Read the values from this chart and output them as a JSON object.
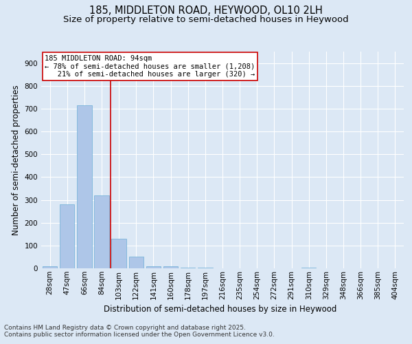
{
  "title_line1": "185, MIDDLETON ROAD, HEYWOOD, OL10 2LH",
  "title_line2": "Size of property relative to semi-detached houses in Heywood",
  "xlabel": "Distribution of semi-detached houses by size in Heywood",
  "ylabel": "Number of semi-detached properties",
  "categories": [
    "28sqm",
    "47sqm",
    "66sqm",
    "84sqm",
    "103sqm",
    "122sqm",
    "141sqm",
    "160sqm",
    "178sqm",
    "197sqm",
    "216sqm",
    "235sqm",
    "254sqm",
    "272sqm",
    "291sqm",
    "310sqm",
    "329sqm",
    "348sqm",
    "366sqm",
    "385sqm",
    "404sqm"
  ],
  "values": [
    10,
    280,
    715,
    320,
    130,
    50,
    10,
    10,
    2,
    2,
    0,
    0,
    0,
    0,
    0,
    2,
    0,
    0,
    0,
    0,
    0
  ],
  "bar_color": "#aec6e8",
  "bar_edge_color": "#6baed6",
  "vline_color": "#cc0000",
  "annotation_text": "185 MIDDLETON ROAD: 94sqm\n← 78% of semi-detached houses are smaller (1,208)\n   21% of semi-detached houses are larger (320) →",
  "annotation_box_color": "#ffffff",
  "annotation_border_color": "#cc0000",
  "ylim": [
    0,
    950
  ],
  "yticks": [
    0,
    100,
    200,
    300,
    400,
    500,
    600,
    700,
    800,
    900
  ],
  "footer_line1": "Contains HM Land Registry data © Crown copyright and database right 2025.",
  "footer_line2": "Contains public sector information licensed under the Open Government Licence v3.0.",
  "background_color": "#dce8f5",
  "plot_bg_color": "#dce8f5",
  "grid_color": "#ffffff",
  "title_fontsize": 10.5,
  "subtitle_fontsize": 9.5,
  "axis_label_fontsize": 8.5,
  "tick_fontsize": 7.5,
  "footer_fontsize": 6.5,
  "annotation_fontsize": 7.5
}
